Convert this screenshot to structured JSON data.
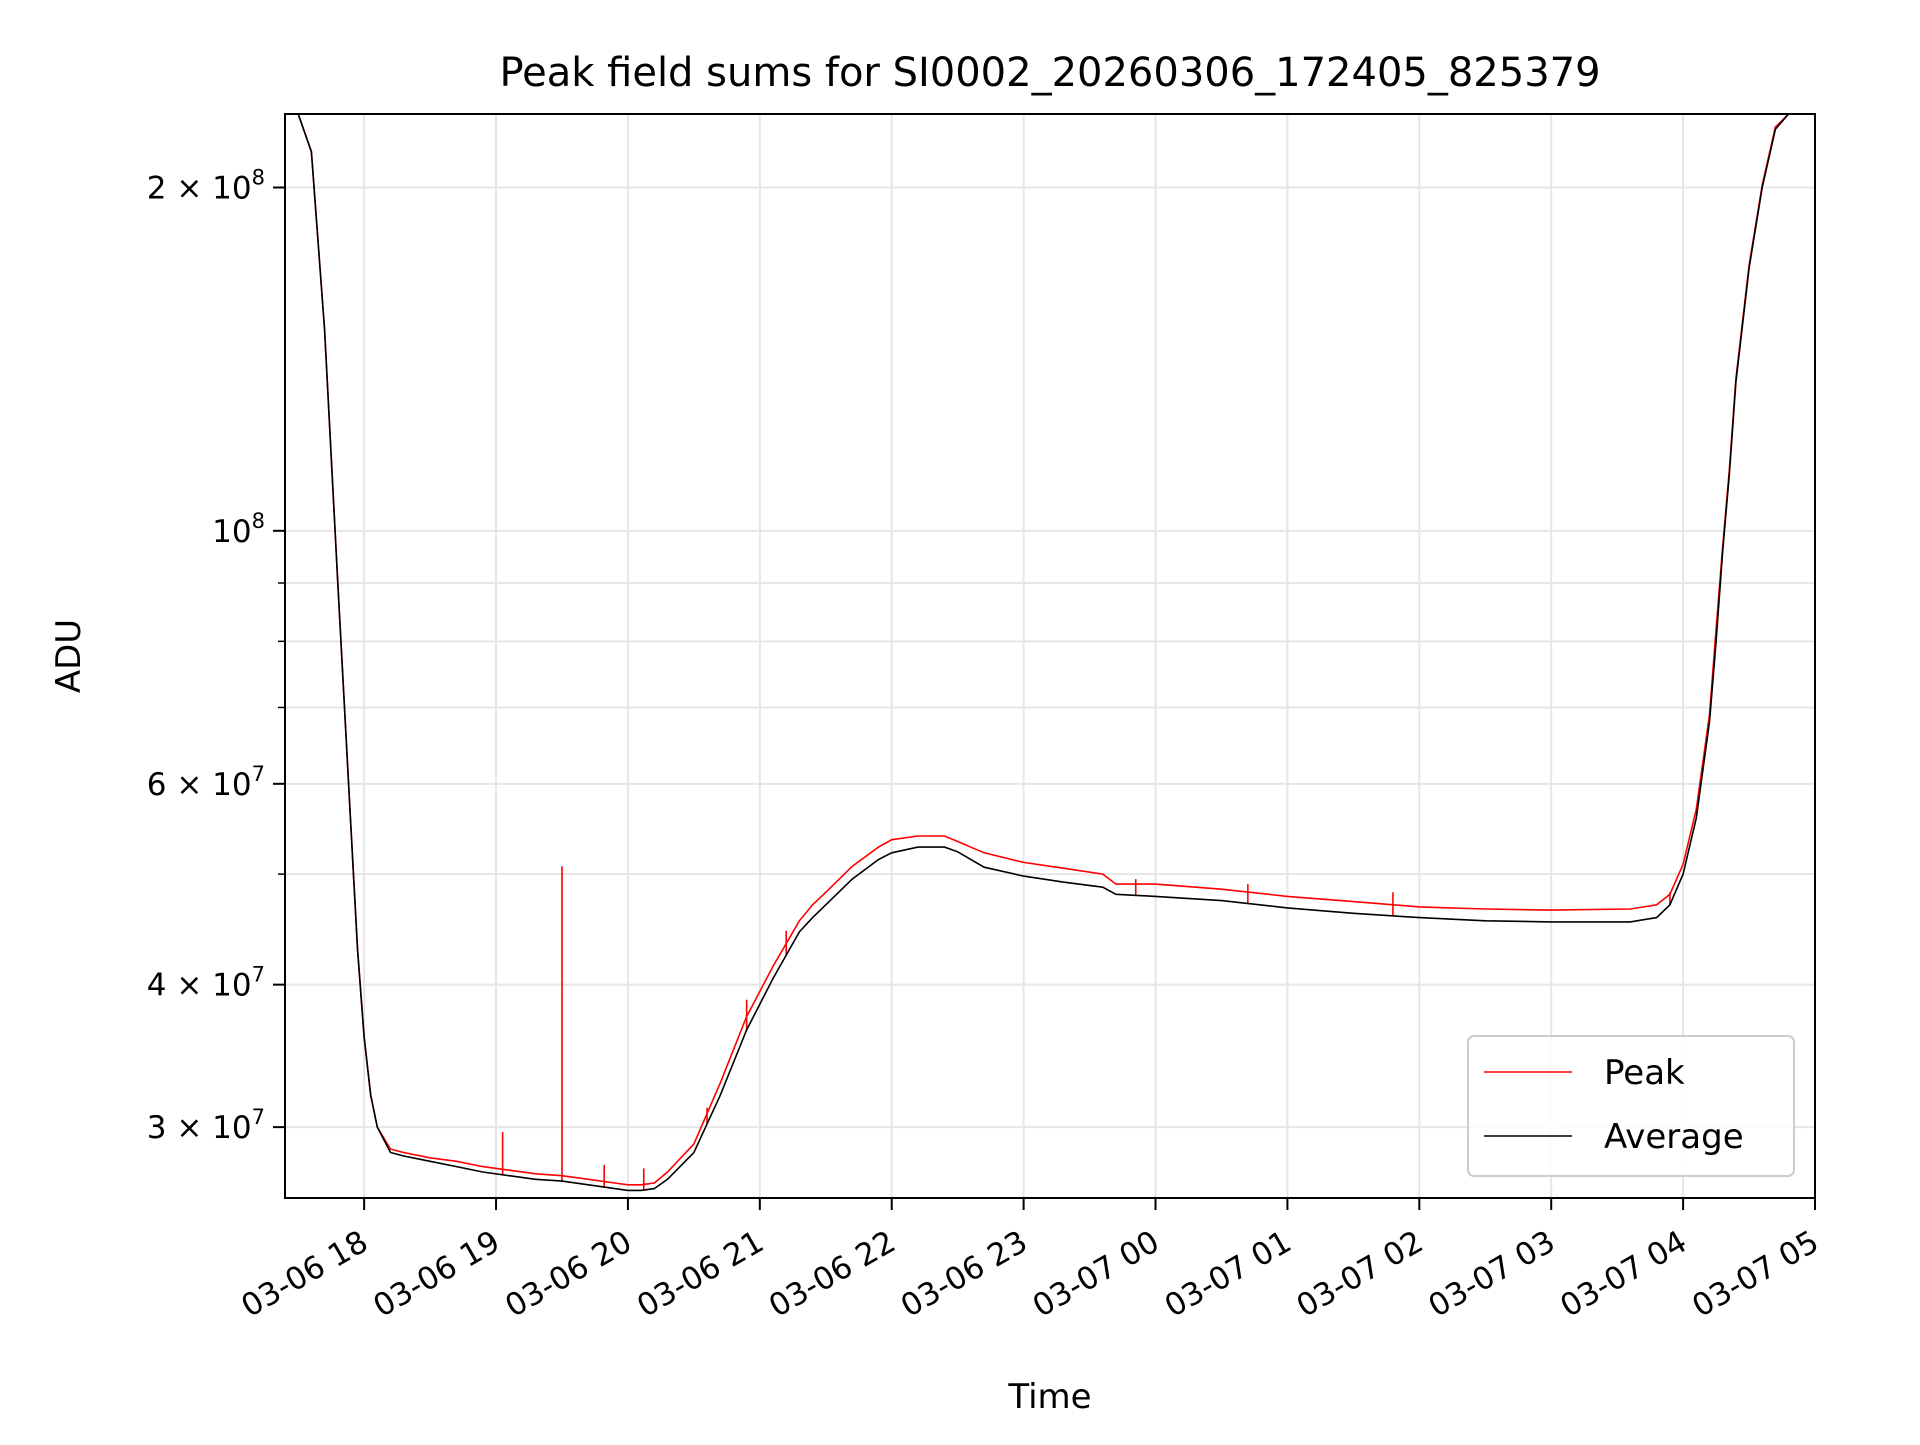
{
  "chart_data": {
    "type": "line",
    "title": "Peak field sums for SI0002_20260306_172405_825379",
    "xlabel": "Time",
    "ylabel": "ADU",
    "yscale": "log",
    "grid": true,
    "legend_position": "lower-right",
    "x_unit": "hours since 03-06 17:00",
    "xlim": [
      0.4,
      12.0
    ],
    "ylim": [
      26000000,
      232000000
    ],
    "x_ticks": [
      {
        "value": 1,
        "label": "03-06 18"
      },
      {
        "value": 2,
        "label": "03-06 19"
      },
      {
        "value": 3,
        "label": "03-06 20"
      },
      {
        "value": 4,
        "label": "03-06 21"
      },
      {
        "value": 5,
        "label": "03-06 22"
      },
      {
        "value": 6,
        "label": "03-06 23"
      },
      {
        "value": 7,
        "label": "03-07 00"
      },
      {
        "value": 8,
        "label": "03-07 01"
      },
      {
        "value": 9,
        "label": "03-07 02"
      },
      {
        "value": 10,
        "label": "03-07 03"
      },
      {
        "value": 11,
        "label": "03-07 04"
      },
      {
        "value": 12,
        "label": "03-07 05"
      }
    ],
    "y_ticks_major": [
      {
        "value": 30000000,
        "label": "3 × 10",
        "exp": "7"
      },
      {
        "value": 40000000,
        "label": "4 × 10",
        "exp": "7"
      },
      {
        "value": 60000000,
        "label": "6 × 10",
        "exp": "7"
      },
      {
        "value": 100000000,
        "label": "10",
        "exp": "8"
      },
      {
        "value": 200000000,
        "label": "2 × 10",
        "exp": "8"
      }
    ],
    "y_ticks_minor": [
      50000000,
      70000000,
      80000000,
      90000000
    ],
    "series": [
      {
        "name": "Average",
        "color": "#000000",
        "x": [
          0.4,
          0.5,
          0.6,
          0.7,
          0.8,
          0.9,
          0.95,
          1.0,
          1.05,
          1.1,
          1.2,
          1.3,
          1.5,
          1.7,
          1.9,
          2.1,
          2.3,
          2.5,
          2.7,
          2.9,
          3.0,
          3.1,
          3.2,
          3.3,
          3.5,
          3.7,
          3.9,
          4.1,
          4.3,
          4.4,
          4.5,
          4.7,
          4.9,
          5.0,
          5.2,
          5.4,
          5.5,
          5.7,
          6.0,
          6.3,
          6.6,
          6.7,
          7.0,
          7.5,
          8.0,
          8.5,
          9.0,
          9.5,
          10.0,
          10.6,
          10.8,
          10.9,
          11.0,
          11.1,
          11.2,
          11.25,
          11.3,
          11.35,
          11.4,
          11.5,
          11.6,
          11.7,
          11.8,
          11.9,
          12.0
        ],
        "y": [
          232000000,
          232000000,
          215000000,
          150000000,
          90000000,
          55000000,
          43000000,
          36000000,
          32000000,
          30000000,
          28500000,
          28300000,
          28000000,
          27700000,
          27400000,
          27200000,
          27000000,
          26900000,
          26700000,
          26500000,
          26400000,
          26400000,
          26500000,
          27000000,
          28500000,
          32000000,
          36500000,
          40500000,
          44500000,
          45800000,
          47000000,
          49500000,
          51500000,
          52200000,
          52800000,
          52800000,
          52300000,
          50700000,
          49800000,
          49200000,
          48700000,
          48000000,
          47800000,
          47400000,
          46700000,
          46200000,
          45800000,
          45500000,
          45400000,
          45400000,
          45800000,
          47000000,
          50000000,
          56000000,
          68000000,
          80000000,
          96000000,
          112000000,
          135000000,
          170000000,
          200000000,
          225000000,
          232000000,
          232000000,
          232000000
        ]
      },
      {
        "name": "Peak",
        "color": "#ff0000",
        "x": [
          0.4,
          0.5,
          0.6,
          0.7,
          0.8,
          0.9,
          0.95,
          1.0,
          1.05,
          1.1,
          1.2,
          1.3,
          1.5,
          1.7,
          1.9,
          2.1,
          2.3,
          2.5,
          2.7,
          2.9,
          3.0,
          3.1,
          3.2,
          3.3,
          3.5,
          3.7,
          3.9,
          4.1,
          4.3,
          4.4,
          4.5,
          4.7,
          4.9,
          5.0,
          5.2,
          5.4,
          5.5,
          5.7,
          6.0,
          6.3,
          6.6,
          6.7,
          7.0,
          7.5,
          8.0,
          8.5,
          9.0,
          9.5,
          10.0,
          10.6,
          10.8,
          10.9,
          11.0,
          11.1,
          11.2,
          11.25,
          11.3,
          11.35,
          11.4,
          11.5,
          11.6,
          11.7,
          11.8,
          11.9,
          12.0
        ],
        "y": [
          232000000,
          232000000,
          215000000,
          150000000,
          90000000,
          55000000,
          43000000,
          36000000,
          32000000,
          30000000,
          28700000,
          28500000,
          28200000,
          28000000,
          27700000,
          27500000,
          27300000,
          27200000,
          27000000,
          26800000,
          26700000,
          26700000,
          26800000,
          27400000,
          29000000,
          32800000,
          37500000,
          41500000,
          45500000,
          47000000,
          48200000,
          50800000,
          52800000,
          53600000,
          54000000,
          54000000,
          53400000,
          52200000,
          51200000,
          50600000,
          50000000,
          49000000,
          49000000,
          48500000,
          47800000,
          47300000,
          46800000,
          46600000,
          46500000,
          46600000,
          47000000,
          48000000,
          51000000,
          57000000,
          69000000,
          82000000,
          97000000,
          113000000,
          136000000,
          171000000,
          201000000,
          226000000,
          232000000,
          232000000,
          232000000
        ],
        "spikes": [
          {
            "x": 2.05,
            "y": 29700000
          },
          {
            "x": 2.5,
            "y": 50800000
          },
          {
            "x": 2.82,
            "y": 27800000
          },
          {
            "x": 3.12,
            "y": 27600000
          },
          {
            "x": 3.6,
            "y": 31200000
          },
          {
            "x": 3.9,
            "y": 38800000
          },
          {
            "x": 4.2,
            "y": 44600000
          },
          {
            "x": 6.85,
            "y": 49500000
          },
          {
            "x": 7.7,
            "y": 49000000
          },
          {
            "x": 8.8,
            "y": 48200000
          },
          {
            "x": 10.9,
            "y": 48200000
          }
        ]
      }
    ]
  }
}
